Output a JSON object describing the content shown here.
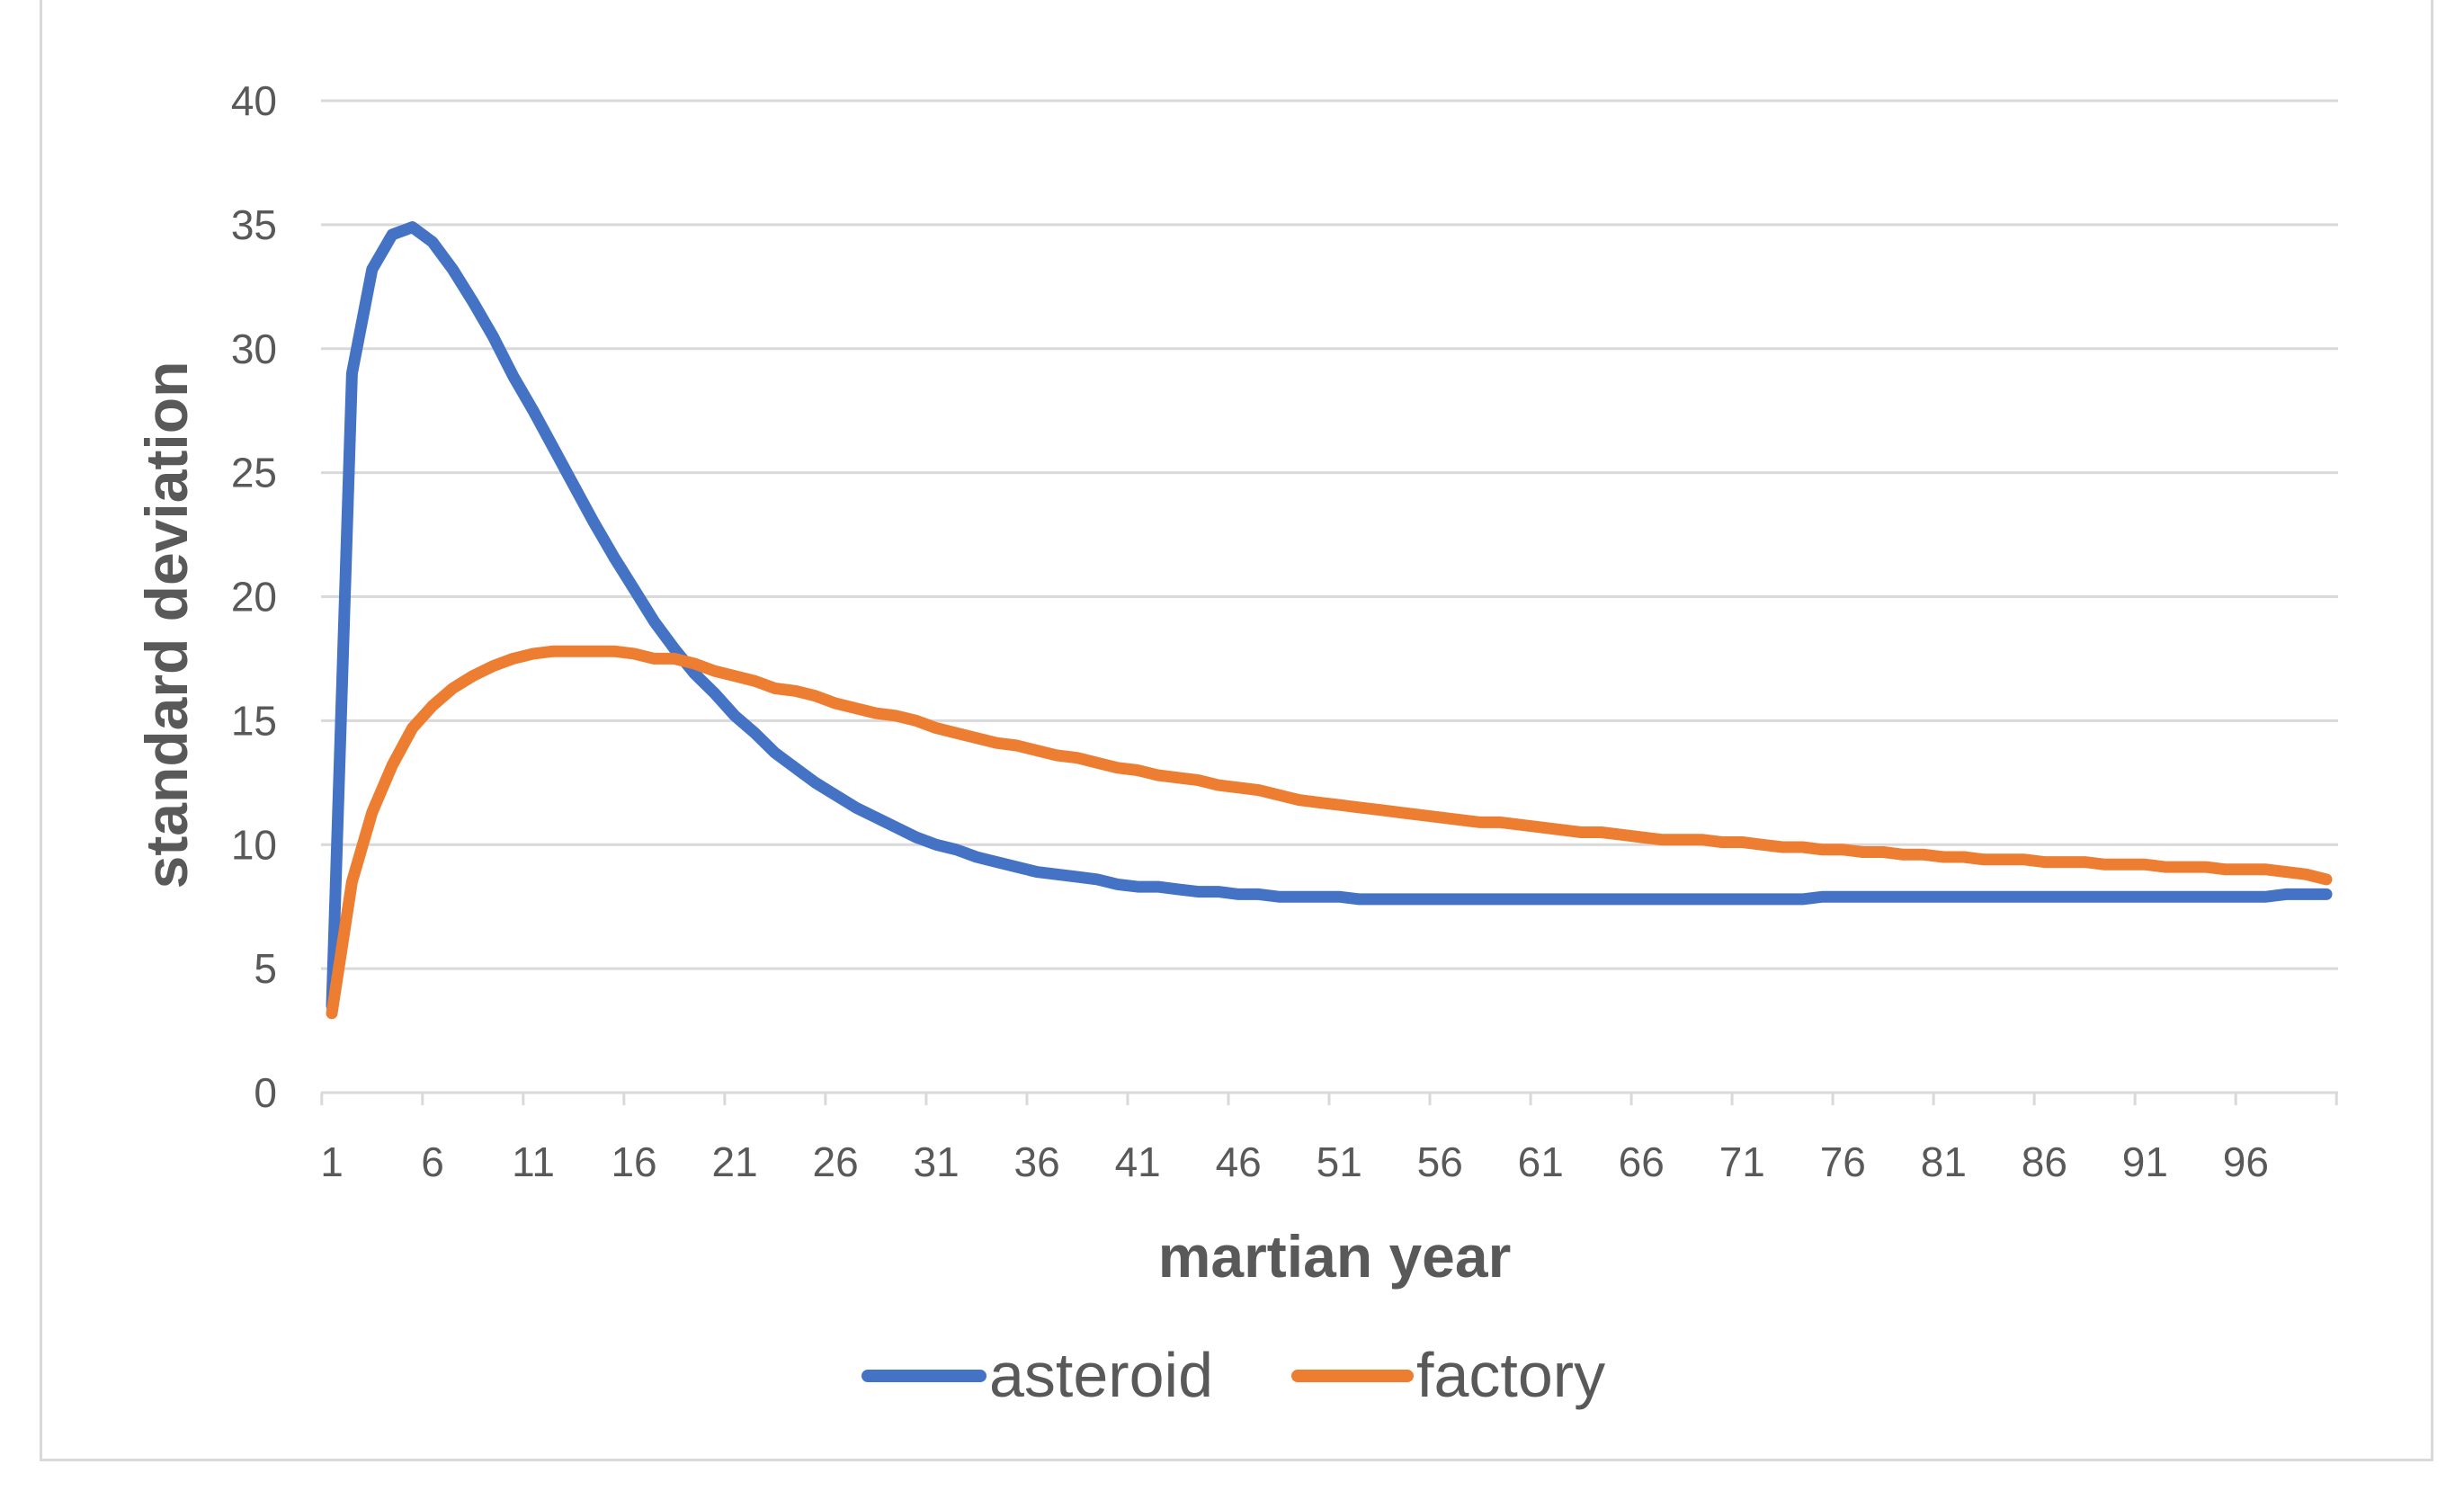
{
  "chart_data": {
    "type": "line",
    "title": "",
    "xlabel": "martian year",
    "ylabel": "standard deviation",
    "ylim": [
      0,
      40
    ],
    "yticks": [
      0,
      5,
      10,
      15,
      20,
      25,
      30,
      35,
      40
    ],
    "xticks": [
      1,
      6,
      11,
      16,
      21,
      26,
      31,
      36,
      41,
      46,
      51,
      56,
      61,
      66,
      71,
      76,
      81,
      86,
      91,
      96
    ],
    "x_count": 100,
    "grid": "horizontal",
    "legend_position": "bottom",
    "series": [
      {
        "name": "asteroid",
        "color": "#4472c4",
        "values": [
          3.5,
          29.0,
          33.2,
          34.6,
          34.9,
          34.3,
          33.2,
          31.9,
          30.5,
          28.9,
          27.5,
          26.0,
          24.5,
          23.0,
          21.6,
          20.3,
          19.0,
          17.9,
          16.9,
          16.1,
          15.2,
          14.5,
          13.7,
          13.1,
          12.5,
          12.0,
          11.5,
          11.1,
          10.7,
          10.3,
          10.0,
          9.8,
          9.5,
          9.3,
          9.1,
          8.9,
          8.8,
          8.7,
          8.6,
          8.4,
          8.3,
          8.3,
          8.2,
          8.1,
          8.1,
          8.0,
          8.0,
          7.9,
          7.9,
          7.9,
          7.9,
          7.8,
          7.8,
          7.8,
          7.8,
          7.8,
          7.8,
          7.8,
          7.8,
          7.8,
          7.8,
          7.8,
          7.8,
          7.8,
          7.8,
          7.8,
          7.8,
          7.8,
          7.8,
          7.8,
          7.8,
          7.8,
          7.8,
          7.8,
          7.9,
          7.9,
          7.9,
          7.9,
          7.9,
          7.9,
          7.9,
          7.9,
          7.9,
          7.9,
          7.9,
          7.9,
          7.9,
          7.9,
          7.9,
          7.9,
          7.9,
          7.9,
          7.9,
          7.9,
          7.9,
          7.9,
          7.9,
          8.0,
          8.0,
          8.0
        ]
      },
      {
        "name": "factory",
        "color": "#ed7d31",
        "values": [
          3.2,
          8.5,
          11.3,
          13.2,
          14.7,
          15.6,
          16.3,
          16.8,
          17.2,
          17.5,
          17.7,
          17.8,
          17.8,
          17.8,
          17.8,
          17.7,
          17.5,
          17.5,
          17.3,
          17.0,
          16.8,
          16.6,
          16.3,
          16.2,
          16.0,
          15.7,
          15.5,
          15.3,
          15.2,
          15.0,
          14.7,
          14.5,
          14.3,
          14.1,
          14.0,
          13.8,
          13.6,
          13.5,
          13.3,
          13.1,
          13.0,
          12.8,
          12.7,
          12.6,
          12.4,
          12.3,
          12.2,
          12.0,
          11.8,
          11.7,
          11.6,
          11.5,
          11.4,
          11.3,
          11.2,
          11.1,
          11.0,
          10.9,
          10.9,
          10.8,
          10.7,
          10.6,
          10.5,
          10.5,
          10.4,
          10.3,
          10.2,
          10.2,
          10.2,
          10.1,
          10.1,
          10.0,
          9.9,
          9.9,
          9.8,
          9.8,
          9.7,
          9.7,
          9.6,
          9.6,
          9.5,
          9.5,
          9.4,
          9.4,
          9.4,
          9.3,
          9.3,
          9.3,
          9.2,
          9.2,
          9.2,
          9.1,
          9.1,
          9.1,
          9.0,
          9.0,
          9.0,
          8.9,
          8.8,
          8.6
        ]
      }
    ]
  }
}
